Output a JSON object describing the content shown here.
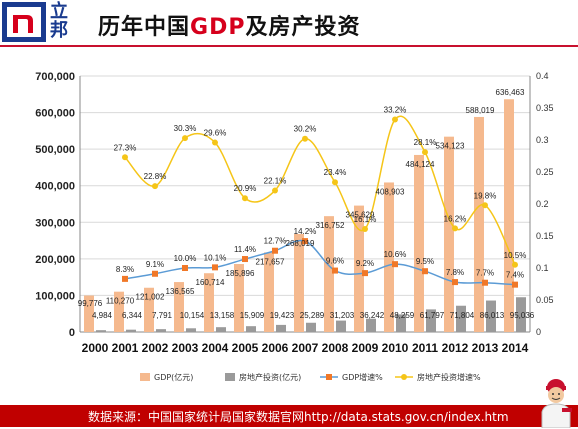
{
  "brand": {
    "name": "立邦",
    "logo_text": "n"
  },
  "title": {
    "prefix": "历年中国",
    "accent": "GDP",
    "suffix": "及房产投资"
  },
  "colors": {
    "gdp_bar": "#f5b98e",
    "invest_bar": "#9a9a9a",
    "gdp_growth_line": "#5b9bd5",
    "gdp_growth_marker": "#f07828",
    "invest_growth_line": "#f5c518",
    "footer_bg": "#c00000",
    "accent": "#d6001c"
  },
  "chart_data": {
    "type": "bar",
    "categories": [
      "2000",
      "2001",
      "2002",
      "2003",
      "2004",
      "2005",
      "2006",
      "2007",
      "2008",
      "2009",
      "2010",
      "2011",
      "2012",
      "2013",
      "2014"
    ],
    "series": [
      {
        "name": "GDP(亿元)",
        "kind": "bar",
        "axis": "left",
        "values": [
          99776,
          110270,
          121002,
          136565,
          160714,
          185896,
          217657,
          268019,
          316752,
          345629,
          408903,
          484124,
          534123,
          588019,
          636463
        ],
        "labels": [
          "99,776",
          "110,270",
          "121,002",
          "136,565",
          "160,714",
          "185,896",
          "217,657",
          "268,019",
          "316,752",
          "345,629",
          "408,903",
          "484,124",
          "534,123",
          "588,019",
          "636,463"
        ]
      },
      {
        "name": "房地产投资(亿元)",
        "kind": "bar",
        "axis": "left",
        "values": [
          4984,
          6344,
          7791,
          10154,
          13158,
          15909,
          19423,
          25289,
          31203,
          36242,
          48259,
          61797,
          71804,
          86013,
          95036
        ],
        "labels": [
          "4,984",
          "6,344",
          "7,791",
          "10,154",
          "13,158",
          "15,909",
          "19,423",
          "25,289",
          "31,203",
          "36,242",
          "48,259",
          "61,797",
          "71,804",
          "86,013",
          "95,036"
        ]
      },
      {
        "name": "GDP增速%",
        "kind": "line",
        "axis": "right",
        "values": [
          null,
          0.083,
          0.091,
          0.1,
          0.101,
          0.114,
          0.127,
          0.142,
          0.096,
          0.092,
          0.106,
          0.095,
          0.078,
          0.077,
          0.074
        ],
        "labels": [
          "",
          "8.3%",
          "9.1%",
          "10.0%",
          "10.1%",
          "11.4%",
          "12.7%",
          "14.2%",
          "9.6%",
          "9.2%",
          "10.6%",
          "9.5%",
          "7.8%",
          "7.7%",
          "7.4%"
        ]
      },
      {
        "name": "房地产投资增速%",
        "kind": "line",
        "axis": "right",
        "values": [
          null,
          0.273,
          0.228,
          0.303,
          0.296,
          0.209,
          0.221,
          0.302,
          0.234,
          0.161,
          0.332,
          0.281,
          0.162,
          0.198,
          0.105
        ],
        "labels": [
          "",
          "27.3%",
          "22.8%",
          "30.3%",
          "29.6%",
          "20.9%",
          "22.1%",
          "30.2%",
          "23.4%",
          "16.1%",
          "33.2%",
          "28.1%",
          "16.2%",
          "19.8%",
          "10.5%"
        ]
      }
    ],
    "y_left": {
      "min": 0,
      "max": 700000,
      "ticks": [
        "0",
        "100,000",
        "200,000",
        "300,000",
        "400,000",
        "500,000",
        "600,000",
        "700,000"
      ]
    },
    "y_right": {
      "min": 0,
      "max": 0.4,
      "ticks": [
        "0",
        "0.05",
        "0.1",
        "0.15",
        "0.2",
        "0.25",
        "0.3",
        "0.35",
        "0.4"
      ]
    },
    "grid": true,
    "legend_position": "bottom"
  },
  "footer": {
    "source": "数据来源：中国国家统计局国家数据官网http://data.stats.gov.cn/index.htm"
  }
}
